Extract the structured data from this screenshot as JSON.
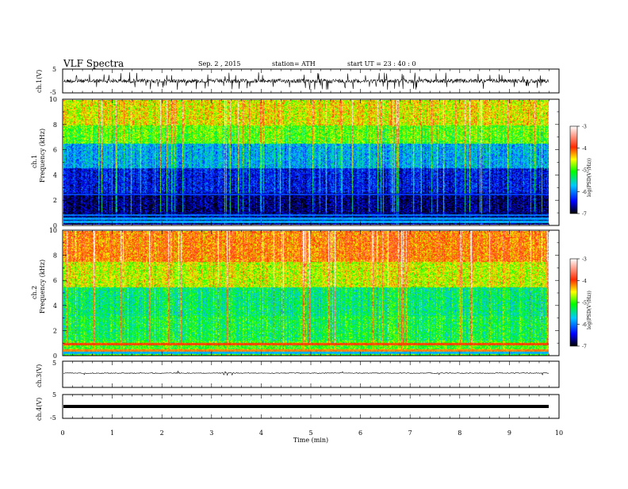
{
  "header": {
    "title": "VLF  Spectra",
    "date": "Sep. 2  , 2015",
    "station": "station= ATH",
    "start": "start  UT  =   23 : 40 : 0"
  },
  "chart_data": [
    {
      "type": "line",
      "panel": "ch1-waveform",
      "ylabel": "ch.1(V)",
      "ylim": [
        -5,
        5
      ],
      "yticks": [
        "5",
        "-5"
      ],
      "xlim": [
        0,
        10
      ]
    },
    {
      "type": "heatmap",
      "panel": "ch1-spectrogram",
      "ylabel_line1": "ch.1",
      "ylabel_line2": "Frequency  (kHz)",
      "ylim": [
        0,
        10
      ],
      "yticks": [
        "0",
        "2",
        "4",
        "6",
        "8",
        "10"
      ],
      "xlim": [
        0,
        10
      ],
      "colorbar": {
        "label": "log(PSD(V²/Hz))",
        "range": [
          -7,
          -3
        ],
        "ticks": [
          "-3",
          "-4",
          "-5",
          "-6",
          "-7"
        ]
      },
      "colors": [
        "#000000",
        "#0000ff",
        "#00c8ff",
        "#00ff00",
        "#ffff00",
        "#ff2a00",
        "#ffffff"
      ]
    },
    {
      "type": "heatmap",
      "panel": "ch2-spectrogram",
      "ylabel_line1": "ch.2",
      "ylabel_line2": "Frequency  (kHz)",
      "ylim": [
        0,
        10
      ],
      "yticks": [
        "0",
        "2",
        "4",
        "6",
        "8",
        "10"
      ],
      "xlim": [
        0,
        10
      ],
      "colorbar": {
        "label": "log(PSD(V²/Hz))",
        "range": [
          -7,
          -3
        ],
        "ticks": [
          "-3",
          "-4",
          "-5",
          "-6",
          "-7"
        ]
      },
      "colors": [
        "#000000",
        "#0000ff",
        "#00c8ff",
        "#00ff00",
        "#ffff00",
        "#ff2a00",
        "#ffffff"
      ]
    },
    {
      "type": "line",
      "panel": "ch3-waveform",
      "ylabel": "ch.3(V)",
      "ylim": [
        -5,
        5
      ],
      "yticks": [
        "5"
      ],
      "xlim": [
        0,
        10
      ]
    },
    {
      "type": "line",
      "panel": "ch4-waveform",
      "ylabel": "ch.4(V)",
      "ylim": [
        -5,
        5
      ],
      "yticks": [
        "5",
        "-5"
      ],
      "xlim": [
        0,
        10
      ]
    }
  ],
  "xaxis": {
    "label": "Time  (min)",
    "ticks": [
      "0",
      "1",
      "2",
      "3",
      "4",
      "5",
      "6",
      "7",
      "8",
      "9",
      "10"
    ]
  }
}
